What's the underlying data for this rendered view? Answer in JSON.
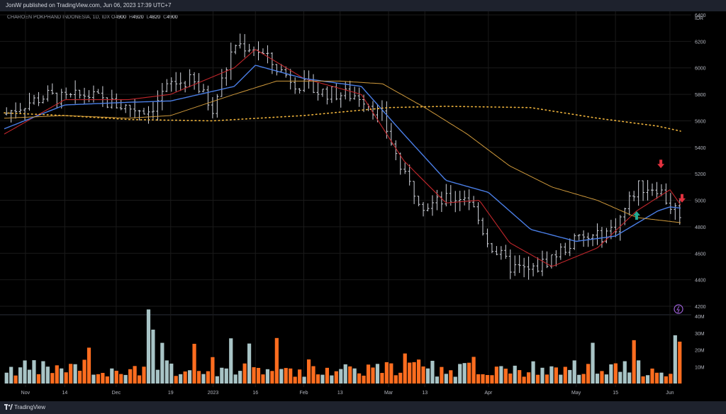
{
  "header": {
    "published": "JoniW published on TradingView.com, Jun 06, 2023 17:39 UTC+7"
  },
  "legend": {
    "symbol": "CHAROEN POKPHAND INDONESIA, 1D, IDX",
    "o_label": "O",
    "o": "4900",
    "h_label": "H",
    "h": "4920",
    "l_label": "L",
    "l": "4820",
    "c_label": "C",
    "c": "4900"
  },
  "footer": {
    "brand": "TradingView"
  },
  "colors": {
    "bars": "#d1d4dc",
    "ma_red": "#c0262b",
    "ma_blue": "#4a7ee6",
    "ma_orange": "#d09a3c",
    "ma_dotted": "#f0b43c",
    "vol_up": "#a8c4c6",
    "vol_down": "#ff6d1f",
    "arrow_up": "#22ab94",
    "arrow_down": "#e0313e",
    "grid": "#1a1a1a"
  },
  "chart_data": {
    "type": "ohlc",
    "currency": "IDR",
    "price_ylim": [
      4200,
      6400
    ],
    "price_ticks": [
      "6400",
      "6200",
      "6000",
      "5800",
      "5600",
      "5400",
      "5200",
      "5000",
      "4800",
      "4600",
      "4400",
      "4200"
    ],
    "volume_ylim": [
      0,
      40
    ],
    "volume_ticks": [
      "40M",
      "30M",
      "20M",
      "10M"
    ],
    "x_ticks": [
      {
        "label": "Nov",
        "date": "2022-11-01"
      },
      {
        "label": "14",
        "date": "2022-11-14"
      },
      {
        "label": "Dec",
        "date": "2022-12-01"
      },
      {
        "label": "19",
        "date": "2022-12-19"
      },
      {
        "label": "2023",
        "date": "2023-01-02"
      },
      {
        "label": "16",
        "date": "2023-01-16"
      },
      {
        "label": "Feb",
        "date": "2023-02-01"
      },
      {
        "label": "13",
        "date": "2023-02-13"
      },
      {
        "label": "Mar",
        "date": "2023-03-01"
      },
      {
        "label": "13",
        "date": "2023-03-13"
      },
      {
        "label": "Apr",
        "date": "2023-04-03"
      },
      {
        "label": "May",
        "date": "2023-05-02"
      },
      {
        "label": "15",
        "date": "2023-05-15"
      },
      {
        "label": "Jun",
        "date": "2023-06-02"
      }
    ],
    "close_path": [
      {
        "date": "2022-10-25",
        "close": 5650
      },
      {
        "date": "2022-11-01",
        "close": 5730
      },
      {
        "date": "2022-11-08",
        "close": 5790
      },
      {
        "date": "2022-11-14",
        "close": 5760
      },
      {
        "date": "2022-11-21",
        "close": 5800
      },
      {
        "date": "2022-11-28",
        "close": 5740
      },
      {
        "date": "2022-12-05",
        "close": 5700
      },
      {
        "date": "2022-12-12",
        "close": 5680
      },
      {
        "date": "2022-12-19",
        "close": 5880
      },
      {
        "date": "2022-12-26",
        "close": 5900
      },
      {
        "date": "2023-01-02",
        "close": 5700
      },
      {
        "date": "2023-01-09",
        "close": 6180
      },
      {
        "date": "2023-01-16",
        "close": 6150
      },
      {
        "date": "2023-01-23",
        "close": 6000
      },
      {
        "date": "2023-01-30",
        "close": 5880
      },
      {
        "date": "2023-02-06",
        "close": 5820
      },
      {
        "date": "2023-02-13",
        "close": 5800
      },
      {
        "date": "2023-02-20",
        "close": 5790
      },
      {
        "date": "2023-02-27",
        "close": 5620
      },
      {
        "date": "2023-03-06",
        "close": 5180
      },
      {
        "date": "2023-03-13",
        "close": 4960
      },
      {
        "date": "2023-03-20",
        "close": 5000
      },
      {
        "date": "2023-03-27",
        "close": 5040
      },
      {
        "date": "2023-04-03",
        "close": 4680
      },
      {
        "date": "2023-04-10",
        "close": 4500
      },
      {
        "date": "2023-04-17",
        "close": 4460
      },
      {
        "date": "2023-05-02",
        "close": 4700
      },
      {
        "date": "2023-05-09",
        "close": 4720
      },
      {
        "date": "2023-05-15",
        "close": 4800
      },
      {
        "date": "2023-05-22",
        "close": 5100
      },
      {
        "date": "2023-05-29",
        "close": 5100
      },
      {
        "date": "2023-06-02",
        "close": 4960
      },
      {
        "date": "2023-06-06",
        "close": 4900
      }
    ],
    "series": [
      {
        "values": [
          {
            "date": "2022-10-25",
            "value": 5500
          },
          {
            "date": "2022-11-14",
            "value": 5760
          },
          {
            "date": "2022-12-05",
            "value": 5760
          },
          {
            "date": "2022-12-19",
            "value": 5800
          },
          {
            "date": "2023-01-09",
            "value": 6000
          },
          {
            "date": "2023-01-16",
            "value": 6140
          },
          {
            "date": "2023-02-01",
            "value": 5920
          },
          {
            "date": "2023-02-20",
            "value": 5800
          },
          {
            "date": "2023-03-06",
            "value": 5300
          },
          {
            "date": "2023-03-20",
            "value": 4980
          },
          {
            "date": "2023-03-31",
            "value": 5000
          },
          {
            "date": "2023-04-10",
            "value": 4680
          },
          {
            "date": "2023-04-24",
            "value": 4500
          },
          {
            "date": "2023-05-09",
            "value": 4640
          },
          {
            "date": "2023-05-22",
            "value": 4920
          },
          {
            "date": "2023-06-02",
            "value": 5080
          },
          {
            "date": "2023-06-06",
            "value": 4950
          }
        ]
      },
      {
        "values": [
          {
            "date": "2022-10-25",
            "value": 5540
          },
          {
            "date": "2022-11-14",
            "value": 5720
          },
          {
            "date": "2022-12-05",
            "value": 5740
          },
          {
            "date": "2022-12-19",
            "value": 5750
          },
          {
            "date": "2023-01-09",
            "value": 5860
          },
          {
            "date": "2023-01-16",
            "value": 6020
          },
          {
            "date": "2023-02-01",
            "value": 5920
          },
          {
            "date": "2023-02-20",
            "value": 5860
          },
          {
            "date": "2023-03-06",
            "value": 5500
          },
          {
            "date": "2023-03-20",
            "value": 5150
          },
          {
            "date": "2023-04-03",
            "value": 5060
          },
          {
            "date": "2023-04-17",
            "value": 4780
          },
          {
            "date": "2023-05-02",
            "value": 4690
          },
          {
            "date": "2023-05-15",
            "value": 4730
          },
          {
            "date": "2023-05-29",
            "value": 4920
          },
          {
            "date": "2023-06-02",
            "value": 4950
          },
          {
            "date": "2023-06-06",
            "value": 4940
          }
        ]
      },
      {
        "values": [
          {
            "date": "2022-10-25",
            "value": 5620
          },
          {
            "date": "2022-11-14",
            "value": 5640
          },
          {
            "date": "2022-12-05",
            "value": 5620
          },
          {
            "date": "2022-12-19",
            "value": 5640
          },
          {
            "date": "2023-01-09",
            "value": 5800
          },
          {
            "date": "2023-01-23",
            "value": 5900
          },
          {
            "date": "2023-02-13",
            "value": 5900
          },
          {
            "date": "2023-02-27",
            "value": 5880
          },
          {
            "date": "2023-03-13",
            "value": 5700
          },
          {
            "date": "2023-03-27",
            "value": 5500
          },
          {
            "date": "2023-04-10",
            "value": 5260
          },
          {
            "date": "2023-04-24",
            "value": 5100
          },
          {
            "date": "2023-05-09",
            "value": 5000
          },
          {
            "date": "2023-05-22",
            "value": 4870
          },
          {
            "date": "2023-06-06",
            "value": 4830
          }
        ]
      },
      {
        "values": [
          {
            "date": "2022-10-25",
            "value": 5660
          },
          {
            "date": "2022-11-14",
            "value": 5640
          },
          {
            "date": "2022-12-05",
            "value": 5610
          },
          {
            "date": "2023-01-02",
            "value": 5600
          },
          {
            "date": "2023-02-01",
            "value": 5640
          },
          {
            "date": "2023-03-01",
            "value": 5700
          },
          {
            "date": "2023-03-20",
            "value": 5710
          },
          {
            "date": "2023-04-17",
            "value": 5700
          },
          {
            "date": "2023-05-09",
            "value": 5620
          },
          {
            "date": "2023-05-29",
            "value": 5560
          },
          {
            "date": "2023-06-06",
            "value": 5520
          }
        ]
      }
    ],
    "markers": [
      {
        "type": "buy",
        "date": "2023-05-22",
        "price": 4880
      },
      {
        "type": "sell",
        "date": "2023-05-30",
        "price": 5280
      },
      {
        "type": "sell",
        "date": "2023-06-06",
        "price": 5020
      }
    ]
  }
}
